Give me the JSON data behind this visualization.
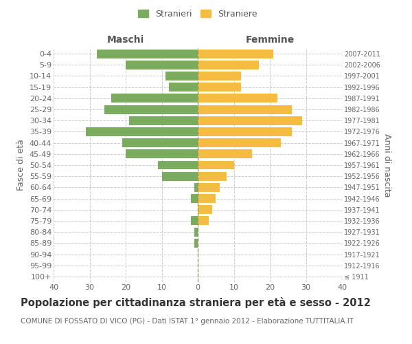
{
  "age_groups": [
    "100+",
    "95-99",
    "90-94",
    "85-89",
    "80-84",
    "75-79",
    "70-74",
    "65-69",
    "60-64",
    "55-59",
    "50-54",
    "45-49",
    "40-44",
    "35-39",
    "30-34",
    "25-29",
    "20-24",
    "15-19",
    "10-14",
    "5-9",
    "0-4"
  ],
  "birth_years": [
    "≤ 1911",
    "1912-1916",
    "1917-1921",
    "1922-1926",
    "1927-1931",
    "1932-1936",
    "1937-1941",
    "1942-1946",
    "1947-1951",
    "1952-1956",
    "1957-1961",
    "1962-1966",
    "1967-1971",
    "1972-1976",
    "1977-1981",
    "1982-1986",
    "1987-1991",
    "1992-1996",
    "1997-2001",
    "2002-2006",
    "2007-2011"
  ],
  "maschi": [
    0,
    0,
    0,
    1,
    1,
    2,
    0,
    2,
    1,
    10,
    11,
    20,
    21,
    31,
    19,
    26,
    24,
    8,
    9,
    20,
    28
  ],
  "femmine": [
    0,
    0,
    0,
    0,
    0,
    3,
    4,
    5,
    6,
    8,
    10,
    15,
    23,
    26,
    29,
    26,
    22,
    12,
    12,
    17,
    21
  ],
  "maschi_color": "#7aab5e",
  "femmine_color": "#f5bc42",
  "grid_color": "#cccccc",
  "bar_height": 0.8,
  "xlim": 40,
  "title": "Popolazione per cittadinanza straniera per età e sesso - 2012",
  "subtitle": "COMUNE DI FOSSATO DI VICO (PG) - Dati ISTAT 1° gennaio 2012 - Elaborazione TUTTITALIA.IT",
  "ylabel_left": "Fasce di età",
  "ylabel_right": "Anni di nascita",
  "legend_stranieri": "Stranieri",
  "legend_straniere": "Straniere",
  "maschi_label": "Maschi",
  "femmine_label": "Femmine",
  "title_fontsize": 10.5,
  "subtitle_fontsize": 7.5,
  "label_fontsize": 9,
  "tick_fontsize": 8,
  "legend_fontsize": 9
}
